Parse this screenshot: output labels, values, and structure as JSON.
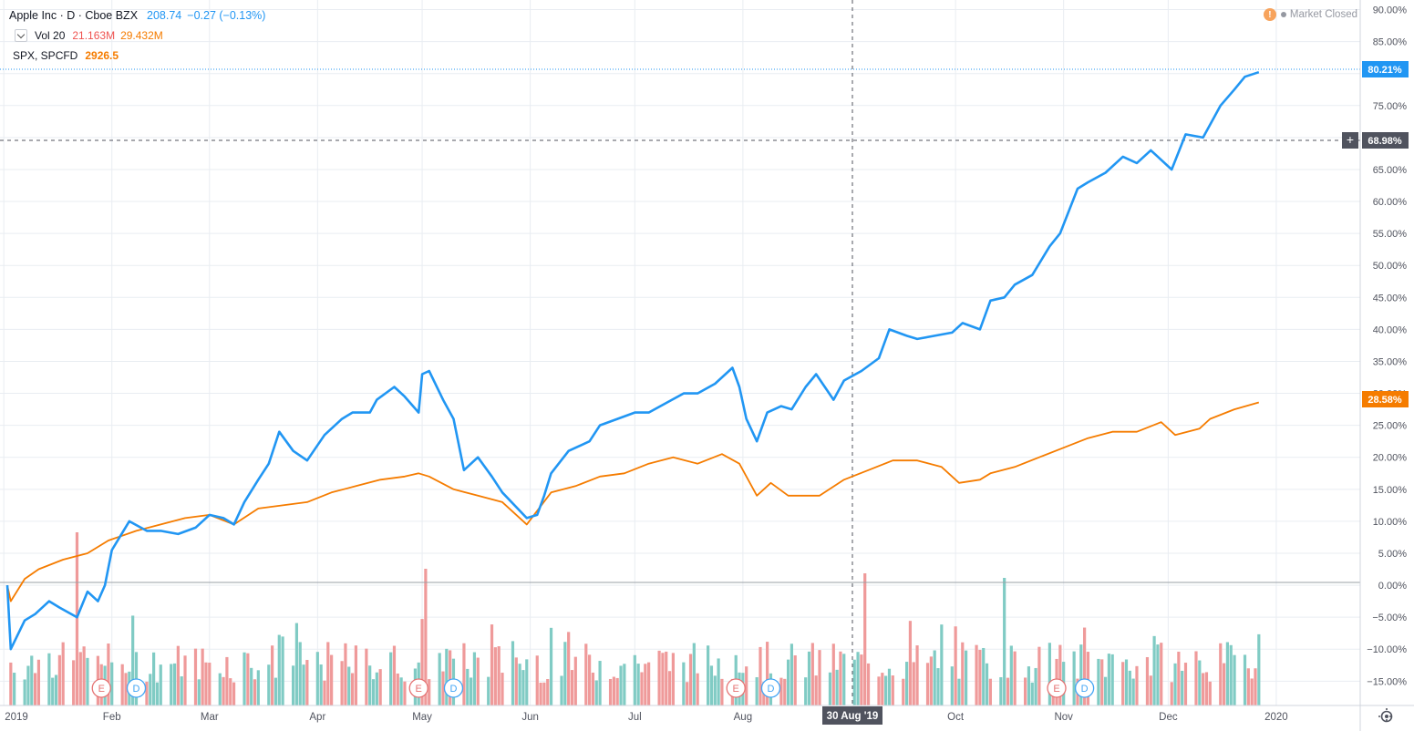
{
  "legend": {
    "symbol": "Apple Inc · D · Cboe BZX",
    "price": "208.74",
    "change": "−0.27 (−0.13%)",
    "vol_label": "Vol 20",
    "vol_value1": "21.163M",
    "vol_value2": "29.432M",
    "compare_label": "SPX, SPCFD",
    "compare_value": "2926.5"
  },
  "market_status": "Market Closed",
  "crosshair": {
    "date_label": "30 Aug '19",
    "price_label": "68.98%"
  },
  "last_labels": {
    "aapl": "80.21%",
    "spx": "28.58%"
  },
  "x_ticks": [
    "2019",
    "Feb",
    "Mar",
    "Apr",
    "May",
    "Jun",
    "Jul",
    "Aug",
    "30 Aug '19",
    "Oct",
    "Nov",
    "Dec",
    "2020"
  ],
  "y_ticks": [
    "90.00%",
    "85.00%",
    "80.00%",
    "75.00%",
    "70.00%",
    "65.00%",
    "60.00%",
    "55.00%",
    "50.00%",
    "45.00%",
    "40.00%",
    "35.00%",
    "30.00%",
    "25.00%",
    "20.00%",
    "15.00%",
    "10.00%",
    "5.00%",
    "0.00%",
    "−5.00%",
    "−10.00%",
    "−15.00%"
  ],
  "markers": [
    {
      "label": "E",
      "date": "2019-01-29"
    },
    {
      "label": "D",
      "date": "2019-02-08"
    },
    {
      "label": "E",
      "date": "2019-04-30"
    },
    {
      "label": "D",
      "date": "2019-05-10"
    },
    {
      "label": "E",
      "date": "2019-07-30"
    },
    {
      "label": "D",
      "date": "2019-08-09"
    },
    {
      "label": "E",
      "date": "2019-10-30"
    },
    {
      "label": "D",
      "date": "2019-11-07"
    }
  ],
  "colors": {
    "aapl": "#2196f3",
    "spx": "#f57c00",
    "vol_up": "#80cbc4",
    "vol_down": "#ef9a9a",
    "grid": "#e9edf2"
  },
  "chart_data": {
    "type": "line",
    "ylim": [
      -18.8,
      91.5
    ],
    "x_start": "2019-01-02",
    "x_end": "2020-01-12",
    "series": [
      {
        "name": "Apple Inc",
        "points": [
          [
            "2019-01-02",
            0
          ],
          [
            "2019-01-03",
            -10
          ],
          [
            "2019-01-07",
            -5.5
          ],
          [
            "2019-01-10",
            -4.5
          ],
          [
            "2019-01-14",
            -2.5
          ],
          [
            "2019-01-17",
            -3.5
          ],
          [
            "2019-01-22",
            -5
          ],
          [
            "2019-01-25",
            -1
          ],
          [
            "2019-01-28",
            -2.5
          ],
          [
            "2019-01-30",
            0
          ],
          [
            "2019-02-01",
            5.5
          ],
          [
            "2019-02-06",
            10
          ],
          [
            "2019-02-11",
            8.5
          ],
          [
            "2019-02-15",
            8.5
          ],
          [
            "2019-02-20",
            8
          ],
          [
            "2019-02-25",
            9
          ],
          [
            "2019-03-01",
            11
          ],
          [
            "2019-03-05",
            10.5
          ],
          [
            "2019-03-08",
            9.5
          ],
          [
            "2019-03-11",
            13
          ],
          [
            "2019-03-15",
            16.5
          ],
          [
            "2019-03-18",
            19
          ],
          [
            "2019-03-21",
            24
          ],
          [
            "2019-03-25",
            21
          ],
          [
            "2019-03-29",
            19.5
          ],
          [
            "2019-04-03",
            23.5
          ],
          [
            "2019-04-08",
            26
          ],
          [
            "2019-04-11",
            27
          ],
          [
            "2019-04-16",
            27
          ],
          [
            "2019-04-18",
            29
          ],
          [
            "2019-04-23",
            31
          ],
          [
            "2019-04-26",
            29.5
          ],
          [
            "2019-04-30",
            27
          ],
          [
            "2019-05-01",
            33
          ],
          [
            "2019-05-03",
            33.5
          ],
          [
            "2019-05-07",
            29
          ],
          [
            "2019-05-10",
            26
          ],
          [
            "2019-05-13",
            18
          ],
          [
            "2019-05-17",
            20
          ],
          [
            "2019-05-21",
            17
          ],
          [
            "2019-05-24",
            14.5
          ],
          [
            "2019-05-31",
            10.5
          ],
          [
            "2019-06-03",
            11
          ],
          [
            "2019-06-05",
            14
          ],
          [
            "2019-06-07",
            17.5
          ],
          [
            "2019-06-12",
            21
          ],
          [
            "2019-06-18",
            22.5
          ],
          [
            "2019-06-21",
            25
          ],
          [
            "2019-06-26",
            26
          ],
          [
            "2019-07-01",
            27
          ],
          [
            "2019-07-05",
            27
          ],
          [
            "2019-07-10",
            28.5
          ],
          [
            "2019-07-15",
            30
          ],
          [
            "2019-07-19",
            30
          ],
          [
            "2019-07-24",
            31.5
          ],
          [
            "2019-07-29",
            34
          ],
          [
            "2019-07-31",
            31
          ],
          [
            "2019-08-02",
            26
          ],
          [
            "2019-08-05",
            22.5
          ],
          [
            "2019-08-08",
            27
          ],
          [
            "2019-08-12",
            28
          ],
          [
            "2019-08-15",
            27.5
          ],
          [
            "2019-08-19",
            31
          ],
          [
            "2019-08-22",
            33
          ],
          [
            "2019-08-27",
            29
          ],
          [
            "2019-08-30",
            32
          ],
          [
            "2019-09-04",
            33.5
          ],
          [
            "2019-09-09",
            35.5
          ],
          [
            "2019-09-12",
            40
          ],
          [
            "2019-09-17",
            39
          ],
          [
            "2019-09-20",
            38.5
          ],
          [
            "2019-09-25",
            39
          ],
          [
            "2019-09-30",
            39.5
          ],
          [
            "2019-10-03",
            41
          ],
          [
            "2019-10-08",
            40
          ],
          [
            "2019-10-11",
            44.5
          ],
          [
            "2019-10-15",
            45
          ],
          [
            "2019-10-18",
            47
          ],
          [
            "2019-10-23",
            48.5
          ],
          [
            "2019-10-28",
            53
          ],
          [
            "2019-10-31",
            55
          ],
          [
            "2019-11-05",
            62
          ],
          [
            "2019-11-08",
            63
          ],
          [
            "2019-11-13",
            64.5
          ],
          [
            "2019-11-18",
            67
          ],
          [
            "2019-11-22",
            66
          ],
          [
            "2019-11-26",
            68
          ],
          [
            "2019-12-02",
            65
          ],
          [
            "2019-12-06",
            70.5
          ],
          [
            "2019-12-11",
            70
          ],
          [
            "2019-12-16",
            75
          ],
          [
            "2019-12-20",
            77.5
          ],
          [
            "2019-12-23",
            79.5
          ],
          [
            "2019-12-27",
            80.21
          ]
        ]
      },
      {
        "name": "SPX, SPCFD",
        "points": [
          [
            "2019-01-02",
            0
          ],
          [
            "2019-01-03",
            -2.5
          ],
          [
            "2019-01-07",
            1
          ],
          [
            "2019-01-11",
            2.5
          ],
          [
            "2019-01-18",
            4
          ],
          [
            "2019-01-25",
            5
          ],
          [
            "2019-01-31",
            7
          ],
          [
            "2019-02-08",
            8.5
          ],
          [
            "2019-02-15",
            9.5
          ],
          [
            "2019-02-22",
            10.5
          ],
          [
            "2019-03-01",
            11
          ],
          [
            "2019-03-08",
            9.5
          ],
          [
            "2019-03-15",
            12
          ],
          [
            "2019-03-22",
            12.5
          ],
          [
            "2019-03-29",
            13
          ],
          [
            "2019-04-05",
            14.5
          ],
          [
            "2019-04-12",
            15.5
          ],
          [
            "2019-04-19",
            16.5
          ],
          [
            "2019-04-26",
            17
          ],
          [
            "2019-04-30",
            17.5
          ],
          [
            "2019-05-03",
            17
          ],
          [
            "2019-05-10",
            15
          ],
          [
            "2019-05-17",
            14
          ],
          [
            "2019-05-24",
            13
          ],
          [
            "2019-05-31",
            9.5
          ],
          [
            "2019-06-07",
            14.5
          ],
          [
            "2019-06-14",
            15.5
          ],
          [
            "2019-06-21",
            17
          ],
          [
            "2019-06-28",
            17.5
          ],
          [
            "2019-07-05",
            19
          ],
          [
            "2019-07-12",
            20
          ],
          [
            "2019-07-19",
            19
          ],
          [
            "2019-07-26",
            20.5
          ],
          [
            "2019-07-31",
            19
          ],
          [
            "2019-08-05",
            14
          ],
          [
            "2019-08-09",
            16
          ],
          [
            "2019-08-14",
            14
          ],
          [
            "2019-08-23",
            14
          ],
          [
            "2019-08-30",
            16.5
          ],
          [
            "2019-09-06",
            18
          ],
          [
            "2019-09-13",
            19.5
          ],
          [
            "2019-09-20",
            19.5
          ],
          [
            "2019-09-27",
            18.5
          ],
          [
            "2019-10-02",
            16
          ],
          [
            "2019-10-08",
            16.5
          ],
          [
            "2019-10-11",
            17.5
          ],
          [
            "2019-10-18",
            18.5
          ],
          [
            "2019-10-25",
            20
          ],
          [
            "2019-11-01",
            21.5
          ],
          [
            "2019-11-08",
            23
          ],
          [
            "2019-11-15",
            24
          ],
          [
            "2019-11-22",
            24
          ],
          [
            "2019-11-29",
            25.5
          ],
          [
            "2019-12-03",
            23.5
          ],
          [
            "2019-12-10",
            24.5
          ],
          [
            "2019-12-13",
            26
          ],
          [
            "2019-12-20",
            27.5
          ],
          [
            "2019-12-27",
            28.58
          ]
        ]
      }
    ]
  }
}
